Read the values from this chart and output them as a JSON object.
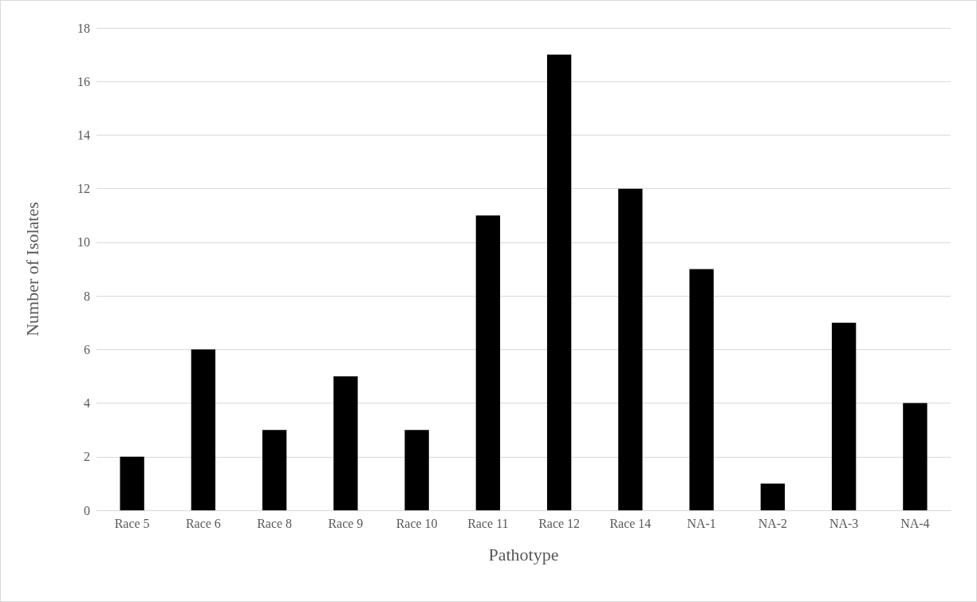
{
  "chart_data": {
    "type": "bar",
    "xlabel": "Pathotype",
    "ylabel": "Number of Isolates",
    "categories": [
      "Race 5",
      "Race 6",
      "Race 8",
      "Race 9",
      "Race 10",
      "Race 11",
      "Race 12",
      "Race 14",
      "NA-1",
      "NA-2",
      "NA-3",
      "NA-4"
    ],
    "values": [
      2,
      6,
      3,
      5,
      3,
      11,
      17,
      12,
      9,
      1,
      7,
      4
    ],
    "color": "#000000",
    "ylim": [
      0,
      18
    ],
    "yticks": [
      0,
      2,
      4,
      6,
      8,
      10,
      12,
      14,
      16,
      18
    ],
    "grid": "y"
  }
}
